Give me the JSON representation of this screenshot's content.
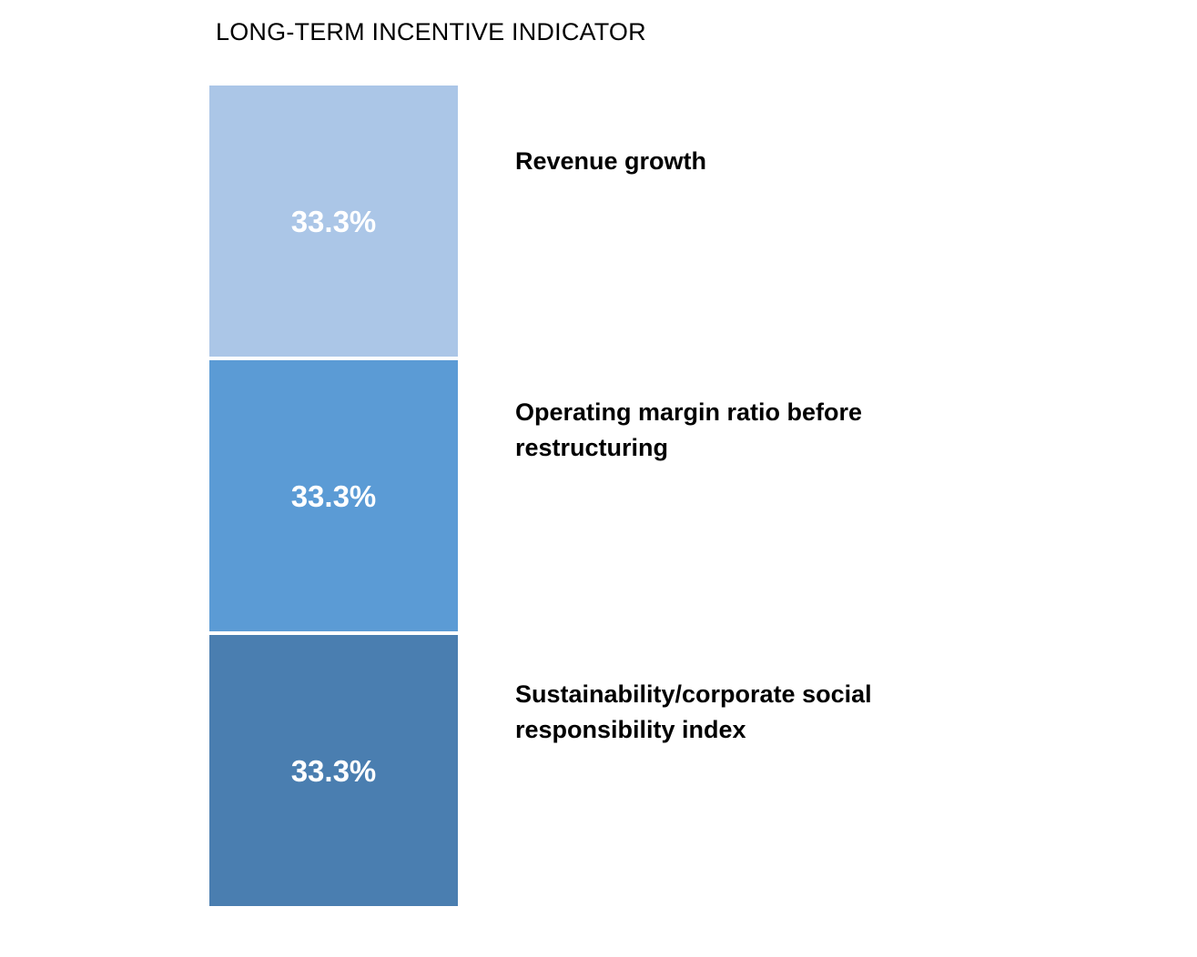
{
  "title": "LONG-TERM INCENTIVE INDICATOR",
  "chart_data": {
    "type": "bar",
    "variant": "stacked-single-column",
    "orientation": "vertical",
    "title": "LONG-TERM INCENTIVE INDICATOR",
    "unit": "%",
    "background": "#ffffff",
    "value_label_color": "#ffffff",
    "category_label_color": "#000000",
    "legend_position": "right-of-bar",
    "grid": false,
    "axes_visible": false,
    "segments": [
      {
        "label": "Revenue growth",
        "label_wrapped": "Revenue growth",
        "value": 33.3,
        "display_value": "33.3%",
        "color": "#abc6e7"
      },
      {
        "label": "Operating margin ratio before restructuring",
        "label_wrapped": "Operating margin ratio before\nrestructuring",
        "value": 33.3,
        "display_value": "33.3%",
        "color": "#5b9bd5"
      },
      {
        "label": "Sustainability/corporate social responsibility index",
        "label_wrapped": "Sustainability/corporate social\nresponsibility index",
        "value": 33.3,
        "display_value": "33.3%",
        "color": "#4a7eb0"
      }
    ]
  }
}
